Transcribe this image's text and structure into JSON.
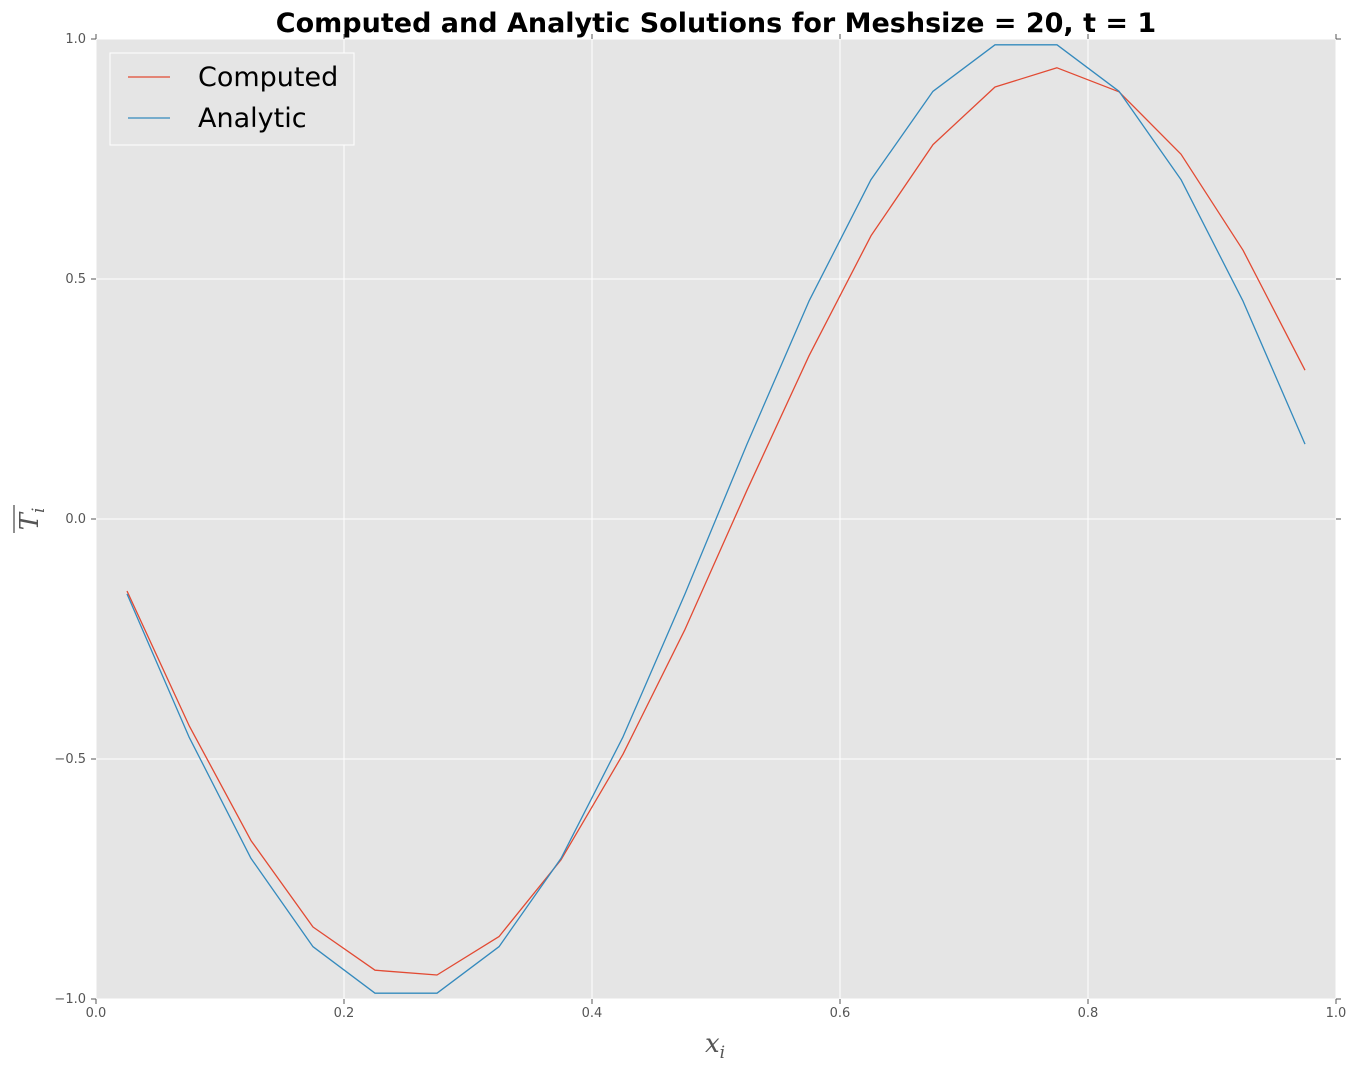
{
  "chart_data": {
    "type": "line",
    "title": "Computed and Analytic Solutions for Meshsize = 20, t = 1",
    "xlabel": {
      "base": "x",
      "sub": "i"
    },
    "ylabel": {
      "base": "T",
      "sub": "i",
      "overline": true
    },
    "xlim": [
      0.0,
      1.0
    ],
    "ylim": [
      -1.0,
      1.0
    ],
    "xticks": [
      "0.0",
      "0.2",
      "0.4",
      "0.6",
      "0.8",
      "1.0"
    ],
    "yticks": [
      "−1.0",
      "−0.5",
      "0.0",
      "0.5",
      "1.0"
    ],
    "grid": true,
    "legend_position": "upper-left",
    "x": [
      0.025,
      0.075,
      0.125,
      0.175,
      0.225,
      0.275,
      0.325,
      0.375,
      0.425,
      0.475,
      0.525,
      0.575,
      0.625,
      0.675,
      0.725,
      0.775,
      0.825,
      0.875,
      0.925,
      0.975
    ],
    "series": [
      {
        "name": "Computed",
        "color": "#e24a33",
        "values": [
          -0.15,
          -0.43,
          -0.67,
          -0.85,
          -0.94,
          -0.95,
          -0.87,
          -0.71,
          -0.49,
          -0.23,
          0.06,
          0.34,
          0.59,
          0.78,
          0.9,
          0.94,
          0.89,
          0.76,
          0.56,
          0.31
        ]
      },
      {
        "name": "Analytic",
        "color": "#348abd",
        "values": [
          -0.156,
          -0.454,
          -0.707,
          -0.891,
          -0.988,
          -0.988,
          -0.891,
          -0.707,
          -0.454,
          -0.156,
          0.156,
          0.454,
          0.707,
          0.891,
          0.988,
          0.988,
          0.891,
          0.707,
          0.454,
          0.156
        ]
      }
    ]
  },
  "colors": {
    "plot_background": "#e5e5e5",
    "grid": "#ffffff",
    "tick_text": "#555555"
  }
}
